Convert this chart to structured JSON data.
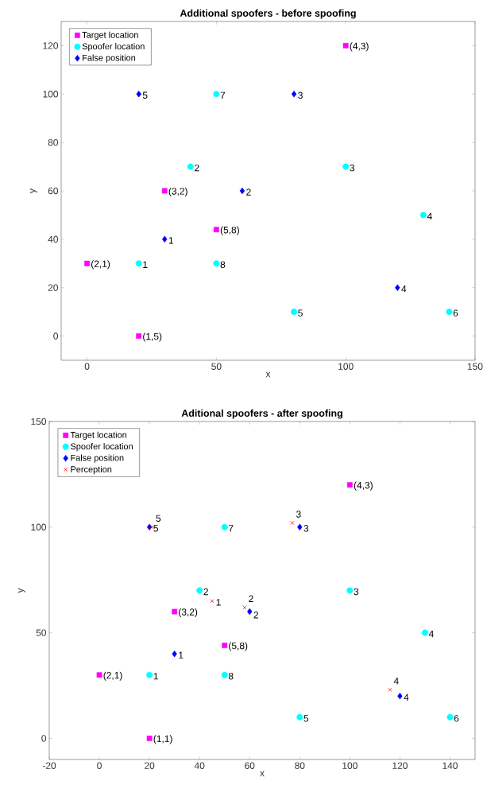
{
  "chart_data": [
    {
      "type": "scatter",
      "title": "Additional spoofers - before spoofing",
      "xlabel": "x",
      "ylabel": "y",
      "xlim": [
        -10,
        150
      ],
      "ylim": [
        -10,
        130
      ],
      "xticks": [
        0,
        50,
        100,
        150
      ],
      "yticks": [
        0,
        20,
        40,
        60,
        80,
        100,
        120
      ],
      "legend": "top left",
      "series": [
        {
          "name": "Target location",
          "color": "#ff00ff",
          "marker": "square",
          "x": [
            20,
            0,
            30,
            100,
            50
          ],
          "values": [
            0,
            30,
            60,
            120,
            44
          ]
        },
        {
          "name": "Spoofer location",
          "color": "#00ffff",
          "marker": "circle",
          "x": [
            20,
            40,
            100,
            130,
            80,
            140,
            50,
            50
          ],
          "values": [
            30,
            70,
            70,
            50,
            10,
            10,
            100,
            30
          ]
        },
        {
          "name": "False position",
          "color": "#0000ff",
          "marker": "diamond",
          "x": [
            30,
            60,
            80,
            120,
            20
          ],
          "values": [
            40,
            60,
            100,
            20,
            100
          ]
        }
      ],
      "annotations": [
        {
          "text": "(1,5)",
          "x": 20,
          "y": 0
        },
        {
          "text": "(2,1)",
          "x": 0,
          "y": 30
        },
        {
          "text": "(3,2)",
          "x": 30,
          "y": 60
        },
        {
          "text": "(4,3)",
          "x": 100,
          "y": 120
        },
        {
          "text": "(5,8)",
          "x": 50,
          "y": 44
        },
        {
          "text": "1",
          "x": 20,
          "y": 30
        },
        {
          "text": "2",
          "x": 40,
          "y": 70
        },
        {
          "text": "3",
          "x": 100,
          "y": 70
        },
        {
          "text": "4",
          "x": 130,
          "y": 50
        },
        {
          "text": "5",
          "x": 80,
          "y": 10
        },
        {
          "text": "6",
          "x": 140,
          "y": 10
        },
        {
          "text": "7",
          "x": 50,
          "y": 100
        },
        {
          "text": "8",
          "x": 50,
          "y": 30
        },
        {
          "text": "1",
          "x": 30,
          "y": 40
        },
        {
          "text": "2",
          "x": 60,
          "y": 60
        },
        {
          "text": "3",
          "x": 80,
          "y": 100
        },
        {
          "text": "4",
          "x": 120,
          "y": 20
        },
        {
          "text": "5",
          "x": 20,
          "y": 100
        }
      ]
    },
    {
      "type": "scatter",
      "title": "Aditional spoofers - after spoofing",
      "xlabel": "x",
      "ylabel": "y",
      "xlim": [
        -20,
        150
      ],
      "ylim": [
        -10,
        150
      ],
      "xticks": [
        -20,
        0,
        20,
        40,
        60,
        80,
        100,
        120,
        140
      ],
      "yticks": [
        0,
        50,
        100,
        150
      ],
      "legend": "top left",
      "series": [
        {
          "name": "Target location",
          "color": "#ff00ff",
          "marker": "square",
          "x": [
            20,
            0,
            30,
            100,
            50
          ],
          "values": [
            0,
            30,
            60,
            120,
            44
          ]
        },
        {
          "name": "Spoofer location",
          "color": "#00ffff",
          "marker": "circle",
          "x": [
            20,
            40,
            100,
            130,
            80,
            140,
            50,
            50
          ],
          "values": [
            30,
            70,
            70,
            50,
            10,
            10,
            100,
            30
          ]
        },
        {
          "name": "False position",
          "color": "#0000ff",
          "marker": "diamond",
          "x": [
            30,
            60,
            80,
            120,
            20
          ],
          "values": [
            40,
            60,
            100,
            20,
            100
          ]
        },
        {
          "name": "Perception",
          "color": "#ff0000",
          "marker": "cross",
          "x": [
            45,
            58,
            77,
            116,
            21
          ],
          "values": [
            65,
            62,
            102,
            23,
            100
          ]
        }
      ],
      "annotations": [
        {
          "text": "(1,1)",
          "x": 20,
          "y": 0
        },
        {
          "text": "(2,1)",
          "x": 0,
          "y": 30
        },
        {
          "text": "(3,2)",
          "x": 30,
          "y": 60
        },
        {
          "text": "(4,3)",
          "x": 100,
          "y": 120
        },
        {
          "text": "(5,8)",
          "x": 50,
          "y": 44
        },
        {
          "text": "1",
          "x": 20,
          "y": 30
        },
        {
          "text": "2",
          "x": 40,
          "y": 70
        },
        {
          "text": "3",
          "x": 100,
          "y": 70
        },
        {
          "text": "4",
          "x": 130,
          "y": 50
        },
        {
          "text": "5",
          "x": 80,
          "y": 10
        },
        {
          "text": "6",
          "x": 140,
          "y": 10
        },
        {
          "text": "7",
          "x": 50,
          "y": 100
        },
        {
          "text": "8",
          "x": 50,
          "y": 30
        },
        {
          "text": "1",
          "x": 30,
          "y": 40
        },
        {
          "text": "2",
          "x": 60,
          "y": 59
        },
        {
          "text": "3",
          "x": 80,
          "y": 100
        },
        {
          "text": "4",
          "x": 120,
          "y": 20
        },
        {
          "text": "5",
          "x": 20,
          "y": 100
        },
        {
          "text": "1",
          "x": 45,
          "y": 65
        },
        {
          "text": "2",
          "x": 58,
          "y": 62
        },
        {
          "text": "3",
          "x": 77,
          "y": 102
        },
        {
          "text": "4",
          "x": 116,
          "y": 23
        },
        {
          "text": "5",
          "x": 21,
          "y": 100
        }
      ]
    }
  ]
}
